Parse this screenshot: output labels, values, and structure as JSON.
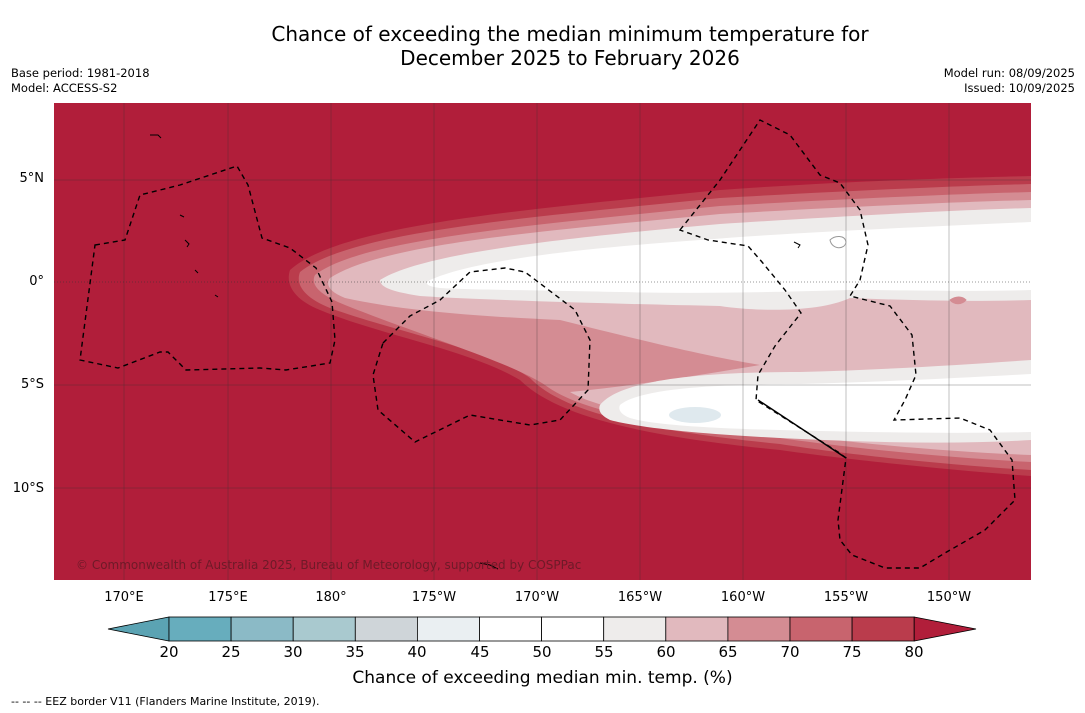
{
  "title": {
    "line1": "Chance of exceeding the median minimum temperature for",
    "line2": "December 2025 to February 2026"
  },
  "meta": {
    "base_period": "Base period: 1981-2018",
    "model": "Model: ACCESS-S2",
    "model_run": "Model run: 08/09/2025",
    "issued": "Issued: 10/09/2025"
  },
  "latitude_labels": [
    "5°N",
    "0°",
    "5°S",
    "10°S"
  ],
  "longitude_labels": [
    "170°E",
    "175°E",
    "180°",
    "175°W",
    "170°W",
    "165°W",
    "160°W",
    "155°W",
    "150°W"
  ],
  "copyright": "© Commonwealth of Australia 2025, Bureau of Meteorology, supported by COSPPac",
  "colorbar": {
    "ticks": [
      "20",
      "25",
      "30",
      "35",
      "40",
      "45",
      "50",
      "55",
      "60",
      "65",
      "70",
      "75",
      "80"
    ],
    "colors": [
      "#67adbd",
      "#8bbac6",
      "#a9c9cf",
      "#cfd5d9",
      "#eaeff2",
      "#ffffff",
      "#ffffff",
      "#eeeceb",
      "#e1b9be",
      "#d48c93",
      "#c8646e",
      "#ba3c4c",
      "#b11e3a"
    ],
    "label": "Chance of exceeding median min. temp. (%)"
  },
  "legend_footer": "--  --  -- EEZ border V11 (Flanders Marine Institute, 2019)."
}
